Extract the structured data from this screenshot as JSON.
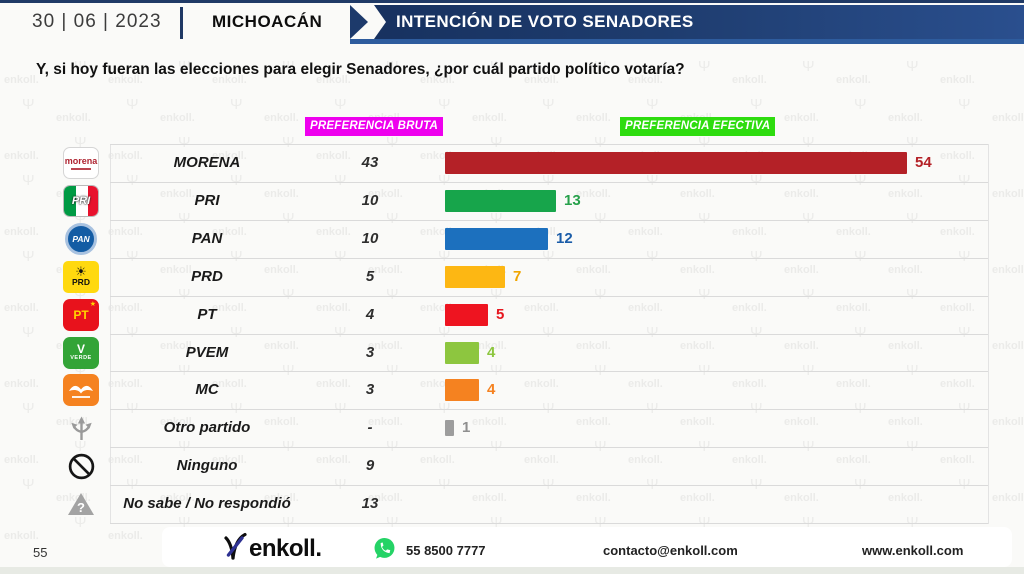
{
  "header": {
    "date": "30 | 06 | 2023",
    "region": "MICHOACÁN",
    "banner_title": "INTENCIÓN DE VOTO SENADORES"
  },
  "question": "Y, si hoy fueran las elecciones para elegir Senadores, ¿por cuál partido político votaría?",
  "column_headers": {
    "bruta": {
      "label": "PREFERENCIA BRUTA",
      "bg": "#ee00ee"
    },
    "efectiva": {
      "label": "PREFERENCIA EFECTIVA",
      "bg": "#2edc0f"
    }
  },
  "chart_data": {
    "type": "bar",
    "orientation": "horizontal",
    "title": "INTENCIÓN DE VOTO SENADORES",
    "region": "MICHOACÁN",
    "categories": [
      "MORENA",
      "PRI",
      "PAN",
      "PRD",
      "PT",
      "PVEM",
      "MC",
      "Otro partido",
      "Ninguno",
      "No sabe / No respondió"
    ],
    "series": [
      {
        "name": "PREFERENCIA BRUTA",
        "values": [
          43,
          10,
          10,
          5,
          4,
          3,
          3,
          null,
          9,
          13
        ],
        "display": [
          "43",
          "10",
          "10",
          "5",
          "4",
          "3",
          "3",
          "-",
          "9",
          "13"
        ]
      },
      {
        "name": "PREFERENCIA EFECTIVA",
        "values": [
          54,
          13,
          12,
          7,
          5,
          4,
          4,
          1,
          null,
          null
        ],
        "display": [
          "54",
          "13",
          "12",
          "7",
          "5",
          "4",
          "4",
          "1",
          "",
          ""
        ]
      }
    ],
    "xlim": [
      0,
      54
    ],
    "grid": false,
    "bar_colors": [
      "#b42127",
      "#17a54b",
      "#1c70be",
      "#fdb713",
      "#ee1420",
      "#8dc63f",
      "#f58220",
      "#9d9d9d",
      null,
      null
    ],
    "value_label_colors": [
      "#b42127",
      "#27a14b",
      "#1a5ca8",
      "#f0a500",
      "#e6161e",
      "#8cc63f",
      "#f58220",
      "#8f8f8f",
      null,
      null
    ],
    "party_icons": [
      "morena-logo",
      "pri-logo",
      "pan-logo",
      "prd-logo",
      "pt-logo",
      "pvem-logo",
      "mc-logo",
      "other-party",
      "none",
      "unknown"
    ]
  },
  "footer": {
    "page_number": "55",
    "brand": "enkoll.",
    "whatsapp_icon": "whatsapp-icon",
    "whatsapp_color": "#25d366",
    "phone": "55 8500 7777",
    "email": "contacto@enkoll.com",
    "website": "www.enkoll.com"
  },
  "watermark_text": "enkoll."
}
